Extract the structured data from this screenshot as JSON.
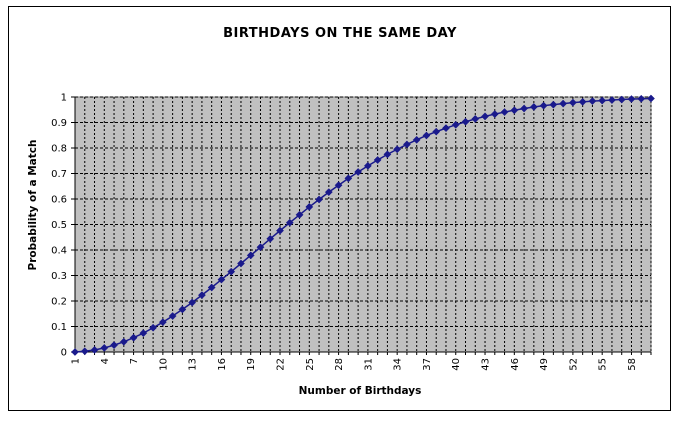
{
  "chart_data": {
    "type": "line",
    "title": "BIRTHDAYS ON THE SAME DAY",
    "xlabel": "Number of Birthdays",
    "ylabel": "Probability of a Match",
    "x_range": [
      1,
      60
    ],
    "x_tick_labels": [
      "1",
      "4",
      "7",
      "10",
      "13",
      "16",
      "19",
      "22",
      "25",
      "28",
      "31",
      "34",
      "37",
      "40",
      "43",
      "46",
      "49",
      "52",
      "55",
      "58"
    ],
    "ylim": [
      0,
      1
    ],
    "y_tick_labels": [
      "0",
      "0.1",
      "0.2",
      "0.3",
      "0.4",
      "0.5",
      "0.6",
      "0.7",
      "0.8",
      "0.9",
      "1"
    ],
    "grid": true,
    "plot_background": "#c0c0c0",
    "marker": "diamond",
    "series": [
      {
        "color": "#1a1a8c",
        "x": [
          1,
          2,
          3,
          4,
          5,
          6,
          7,
          8,
          9,
          10,
          11,
          12,
          13,
          14,
          15,
          16,
          17,
          18,
          19,
          20,
          21,
          22,
          23,
          24,
          25,
          26,
          27,
          28,
          29,
          30,
          31,
          32,
          33,
          34,
          35,
          36,
          37,
          38,
          39,
          40,
          41,
          42,
          43,
          44,
          45,
          46,
          47,
          48,
          49,
          50,
          51,
          52,
          53,
          54,
          55,
          56,
          57,
          58,
          59,
          60
        ],
        "values": [
          0,
          0.003,
          0.008,
          0.016,
          0.027,
          0.04,
          0.056,
          0.074,
          0.095,
          0.117,
          0.141,
          0.167,
          0.194,
          0.223,
          0.253,
          0.284,
          0.315,
          0.347,
          0.379,
          0.411,
          0.444,
          0.476,
          0.507,
          0.538,
          0.569,
          0.598,
          0.627,
          0.654,
          0.681,
          0.706,
          0.73,
          0.753,
          0.775,
          0.795,
          0.814,
          0.832,
          0.849,
          0.864,
          0.878,
          0.891,
          0.903,
          0.914,
          0.924,
          0.933,
          0.941,
          0.948,
          0.955,
          0.961,
          0.966,
          0.97,
          0.974,
          0.978,
          0.981,
          0.984,
          0.986,
          0.988,
          0.99,
          0.992,
          0.993,
          0.994
        ]
      }
    ]
  }
}
